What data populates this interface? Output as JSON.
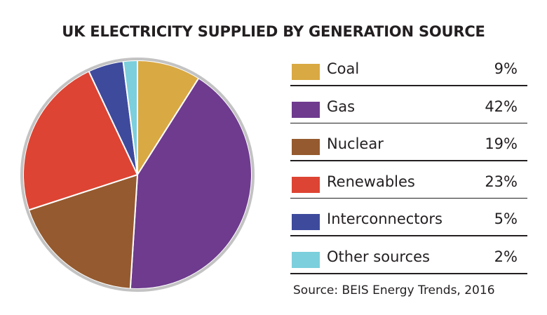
{
  "chart_data": {
    "type": "pie",
    "title": "UK ELECTRICITY SUPPLIED BY GENERATION SOURCE",
    "slices": [
      {
        "label": "Coal",
        "value": 9,
        "display": "9%",
        "color": "#d9a943"
      },
      {
        "label": "Gas",
        "value": 42,
        "display": "42%",
        "color": "#6e3b8e"
      },
      {
        "label": "Nuclear",
        "value": 19,
        "display": "19%",
        "color": "#955a2f"
      },
      {
        "label": "Renewables",
        "value": 23,
        "display": "23%",
        "color": "#dd4433"
      },
      {
        "label": "Interconnectors",
        "value": 5,
        "display": "5%",
        "color": "#3e4a9c"
      },
      {
        "label": "Other sources",
        "value": 2,
        "display": "2%",
        "color": "#7ccfdc"
      }
    ],
    "start": "12 o'clock",
    "direction": "clockwise",
    "legend_position": "right",
    "source": "Source: BEIS Energy Trends, 2016"
  }
}
